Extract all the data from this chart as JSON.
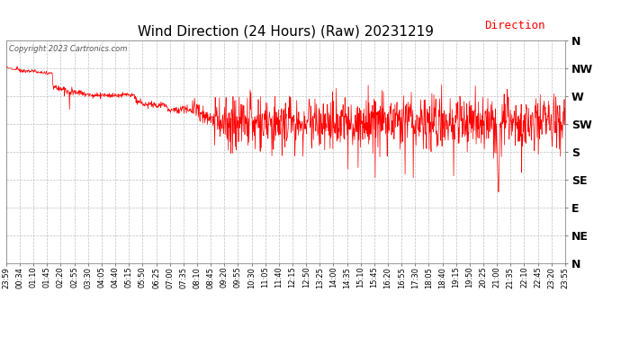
{
  "title": "Wind Direction (24 Hours) (Raw) 20231219",
  "copyright": "Copyright 2023 Cartronics.com",
  "legend_label": "Direction",
  "legend_color": "#ff0000",
  "line_color": "#ff0000",
  "background_color": "#ffffff",
  "grid_color": "#b0b0b0",
  "ytick_labels": [
    "N",
    "NW",
    "W",
    "SW",
    "S",
    "SE",
    "E",
    "NE",
    "N"
  ],
  "ytick_values": [
    360,
    315,
    270,
    225,
    180,
    135,
    90,
    45,
    0
  ],
  "ylim_min": 0,
  "ylim_max": 360,
  "title_fontsize": 11,
  "copy_fontsize": 6,
  "tick_fontsize": 7,
  "legend_fontsize": 9,
  "x_tick_labels": [
    "23:59",
    "00:34",
    "01:10",
    "01:45",
    "02:20",
    "02:55",
    "03:30",
    "04:05",
    "04:40",
    "05:15",
    "05:50",
    "06:25",
    "07:00",
    "07:35",
    "08:10",
    "08:45",
    "09:20",
    "09:55",
    "10:30",
    "11:05",
    "11:40",
    "12:15",
    "12:50",
    "13:25",
    "14:00",
    "14:35",
    "15:10",
    "15:45",
    "16:20",
    "16:55",
    "17:30",
    "18:05",
    "18:40",
    "19:15",
    "19:50",
    "20:25",
    "21:00",
    "21:35",
    "22:10",
    "22:45",
    "23:20",
    "23:55"
  ]
}
